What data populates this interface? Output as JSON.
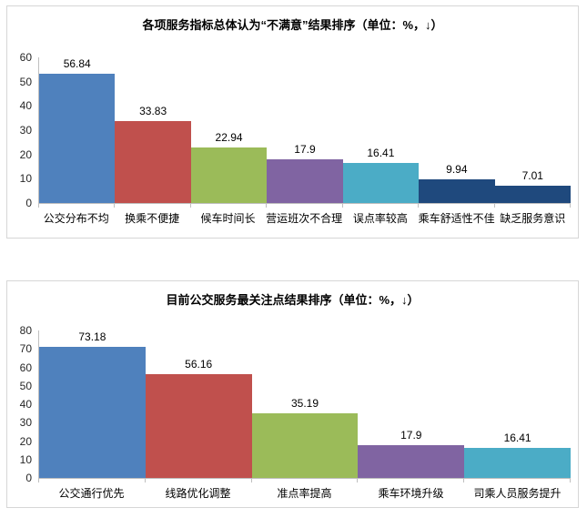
{
  "page": {
    "background_color": "#ffffff",
    "panel_border_color": "#d6d6d6",
    "axis_color": "#bfbfbf"
  },
  "chart_data": [
    {
      "type": "bar",
      "title": "各项服务指标总体认为“不满意”结果排序（单位：%，↓）",
      "categories": [
        "公交分布不均",
        "换乘不便捷",
        "候车时间长",
        "营运班次不合理",
        "误点率较高",
        "乘车舒适性不佳",
        "缺乏服务意识"
      ],
      "values": [
        56.84,
        33.83,
        22.94,
        17.9,
        16.41,
        9.94,
        7.01
      ],
      "value_labels": [
        "56.84",
        "33.83",
        "22.94",
        "17.9",
        "16.41",
        "9.94",
        "7.01"
      ],
      "bar_colors": [
        "#4F81BD",
        "#C0504D",
        "#9BBB59",
        "#8064A2",
        "#4BACC6",
        "#1F497D",
        "#1F497D"
      ],
      "xlabel": "",
      "ylabel": "",
      "ylim": [
        0,
        60
      ],
      "yticks": [
        0,
        10,
        20,
        30,
        40,
        50,
        60
      ],
      "grid": false,
      "legend": "none",
      "bar_gap": 0
    },
    {
      "type": "bar",
      "title": "目前公交服务最关注点结果排序（单位：%，↓）",
      "categories": [
        "公交通行优先",
        "线路优化调整",
        "准点率提高",
        "乘车环境升级",
        "司乘人员服务提升"
      ],
      "values": [
        73.18,
        56.16,
        35.19,
        17.9,
        16.41
      ],
      "value_labels": [
        "73.18",
        "56.16",
        "35.19",
        "17.9",
        "16.41"
      ],
      "bar_colors": [
        "#4F81BD",
        "#C0504D",
        "#9BBB59",
        "#8064A2",
        "#4BACC6"
      ],
      "xlabel": "",
      "ylabel": "",
      "ylim": [
        0,
        80
      ],
      "yticks": [
        0,
        10,
        20,
        30,
        40,
        50,
        60,
        70,
        80
      ],
      "grid": false,
      "legend": "none",
      "bar_gap": 0
    }
  ]
}
